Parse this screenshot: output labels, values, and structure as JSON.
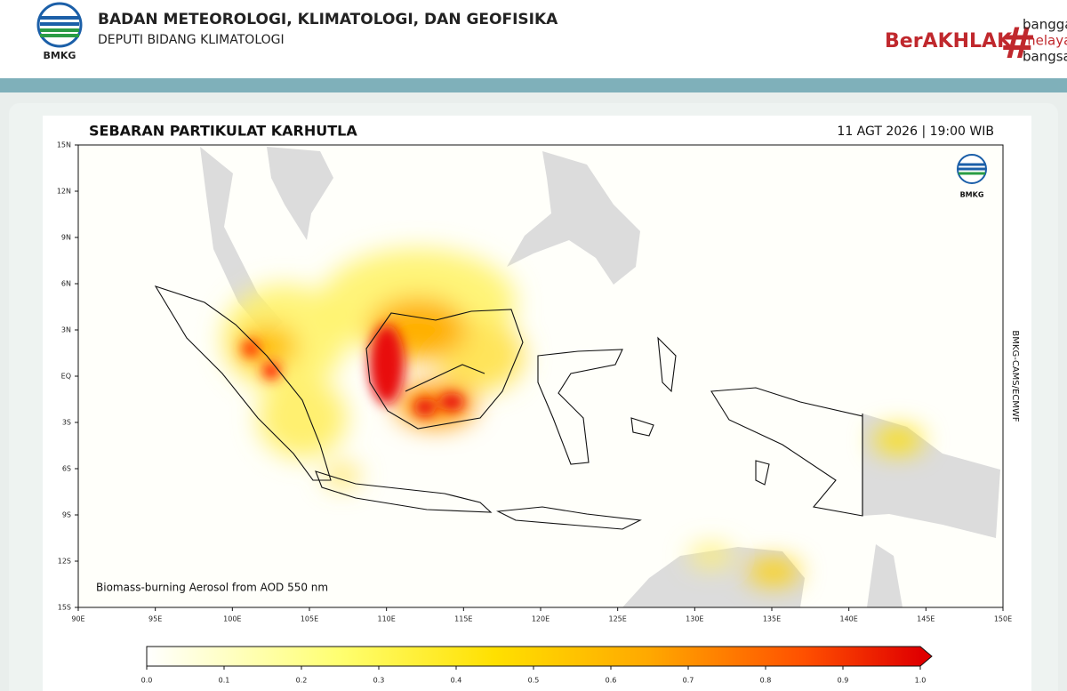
{
  "header": {
    "logo_text": "BMKG",
    "org_title": "BADAN METEOROLOGI, KLIMATOLOGI, DAN GEOFISIKA",
    "org_subtitle": "DEPUTI BIDANG KLIMATOLOGI",
    "badge": {
      "brand": "BerAKHLAK",
      "tagline": [
        "bangga",
        "melaya",
        "bangsa"
      ]
    }
  },
  "map": {
    "title": "SEBARAN PARTIKULAT KARHUTLA",
    "timestamp": "11 AGT 2026 | 19:00 WIB",
    "logo_text": "BMKG",
    "caption": "Biomass-burning Aerosol from AOD 550 nm",
    "source": "BMKG-CAMS/ECMWF",
    "lat_ticks": [
      "15N",
      "12N",
      "9N",
      "6N",
      "3N",
      "EQ",
      "3S",
      "6S",
      "9S",
      "12S",
      "15S"
    ],
    "lon_ticks": [
      "90E",
      "95E",
      "100E",
      "105E",
      "110E",
      "115E",
      "120E",
      "125E",
      "130E",
      "135E",
      "140E",
      "145E",
      "150E"
    ],
    "colorbar": {
      "lim": [
        0,
        1
      ],
      "ticks": [
        {
          "value": 0,
          "label": "0.0"
        },
        {
          "value": 0.1,
          "label": "0.1"
        },
        {
          "value": 0.2,
          "label": "0.2"
        },
        {
          "value": 0.3,
          "label": "0.3"
        },
        {
          "value": 0.4,
          "label": "0.4"
        },
        {
          "value": 0.5,
          "label": "0.5"
        },
        {
          "value": 0.6,
          "label": "0.6"
        },
        {
          "value": 0.7,
          "label": "0.7"
        },
        {
          "value": 0.8,
          "label": "0.8"
        },
        {
          "value": 0.9,
          "label": "0.9"
        },
        {
          "value": 1,
          "label": "1.0"
        }
      ]
    }
  }
}
